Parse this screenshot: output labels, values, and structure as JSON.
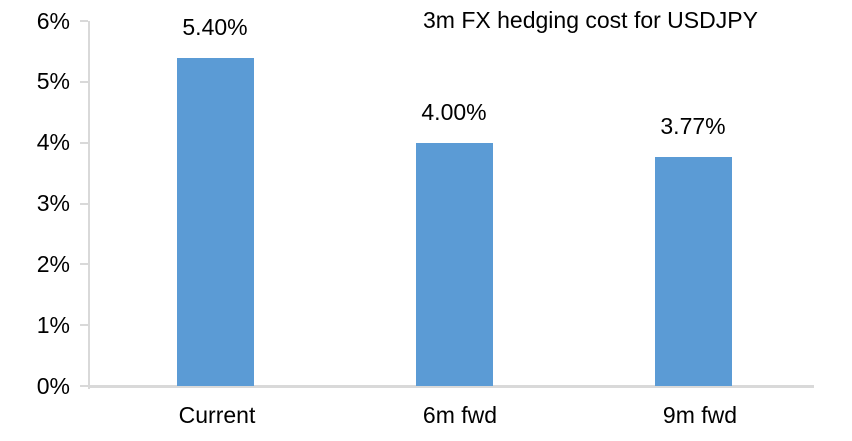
{
  "chart_data": {
    "type": "bar",
    "title": "3m FX hedging cost for USDJPY",
    "categories": [
      "Current",
      "6m fwd",
      "9m fwd"
    ],
    "values": [
      5.4,
      4.0,
      3.77
    ],
    "data_labels": [
      "5.40%",
      "4.00%",
      "3.77%"
    ],
    "ytick_values": [
      0,
      1,
      2,
      3,
      4,
      5,
      6
    ],
    "ytick_labels": [
      "0%",
      "1%",
      "2%",
      "3%",
      "4%",
      "5%",
      "6%"
    ],
    "ylim": [
      0,
      6
    ],
    "xlabel": "",
    "ylabel": "",
    "grid": false,
    "legend": false,
    "bar_color": "#5B9BD5",
    "axis_color": "#D9D9D9",
    "text_color": "#000000",
    "background_color": "#FFFFFF"
  }
}
